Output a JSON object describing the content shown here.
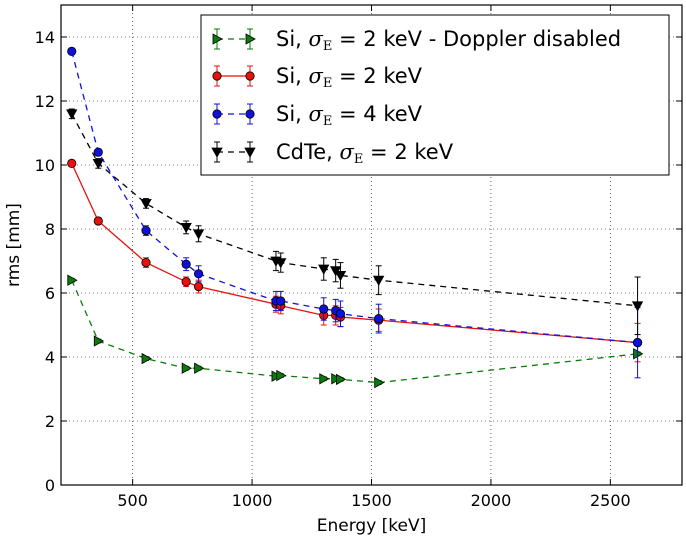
{
  "chart_data": {
    "type": "line",
    "xlabel": "Energy [keV]",
    "ylabel": "rms [mm]",
    "xlim": [
      200,
      2800
    ],
    "ylim": [
      0,
      15
    ],
    "x_ticks": [
      500,
      1000,
      1500,
      2000,
      2500
    ],
    "y_ticks": [
      0,
      2,
      4,
      6,
      8,
      10,
      12,
      14
    ],
    "grid": true,
    "legend_position": "top-right",
    "series": [
      {
        "key": "si_nodoppler",
        "legend": {
          "prefix": "Si, ",
          "sigma": "σ",
          "sub": "E",
          "suffix": " = 2 keV - Doppler disabled"
        },
        "color": "#0a7a0a",
        "dash": "6,5",
        "marker": "triangle-right",
        "x": [
          245,
          356,
          556,
          724,
          776,
          1100,
          1120,
          1300,
          1350,
          1370,
          1530,
          2614
        ],
        "y": [
          6.4,
          4.5,
          3.95,
          3.65,
          3.65,
          3.4,
          3.42,
          3.32,
          3.32,
          3.3,
          3.2,
          4.1
        ],
        "err": [
          0.06,
          0.06,
          0.06,
          0.06,
          0.06,
          0.06,
          0.06,
          0.06,
          0.06,
          0.06,
          0.06,
          0.06
        ]
      },
      {
        "key": "si_2kev",
        "legend": {
          "prefix": "Si, ",
          "sigma": "σ",
          "sub": "E",
          "suffix": " = 2 keV"
        },
        "color": "#e8120c",
        "dash": "",
        "marker": "circle",
        "x": [
          245,
          356,
          556,
          724,
          776,
          1100,
          1120,
          1300,
          1350,
          1370,
          1530,
          2614
        ],
        "y": [
          10.05,
          8.25,
          6.95,
          6.35,
          6.2,
          5.65,
          5.6,
          5.3,
          5.3,
          5.25,
          5.15,
          4.45
        ],
        "err": [
          0.1,
          0.1,
          0.15,
          0.15,
          0.2,
          0.25,
          0.25,
          0.3,
          0.3,
          0.3,
          0.35,
          0.6
        ]
      },
      {
        "key": "si_4kev",
        "legend": {
          "prefix": "Si, ",
          "sigma": "σ",
          "sub": "E",
          "suffix": " = 4 keV"
        },
        "color": "#1010dc",
        "dash": "6,5",
        "marker": "circle",
        "x": [
          245,
          356,
          556,
          724,
          776,
          1100,
          1120,
          1300,
          1350,
          1370,
          1530,
          2614
        ],
        "y": [
          13.55,
          10.4,
          7.95,
          6.9,
          6.6,
          5.75,
          5.75,
          5.5,
          5.45,
          5.35,
          5.2,
          4.45
        ],
        "err": [
          0.1,
          0.1,
          0.15,
          0.2,
          0.25,
          0.3,
          0.3,
          0.35,
          0.35,
          0.4,
          0.45,
          1.1
        ]
      },
      {
        "key": "cdte_2kev",
        "legend": {
          "prefix": "CdTe, ",
          "sigma": "σ",
          "sub": "E",
          "suffix": " = 2 keV"
        },
        "color": "#000000",
        "dash": "6,5",
        "marker": "triangle-down",
        "x": [
          245,
          356,
          556,
          724,
          776,
          1100,
          1120,
          1300,
          1350,
          1370,
          1530,
          2614
        ],
        "y": [
          11.6,
          10.05,
          8.8,
          8.05,
          7.85,
          7.0,
          6.95,
          6.75,
          6.7,
          6.55,
          6.4,
          5.6
        ],
        "err": [
          0.15,
          0.15,
          0.15,
          0.2,
          0.25,
          0.3,
          0.3,
          0.35,
          0.35,
          0.4,
          0.45,
          0.9
        ]
      }
    ]
  }
}
